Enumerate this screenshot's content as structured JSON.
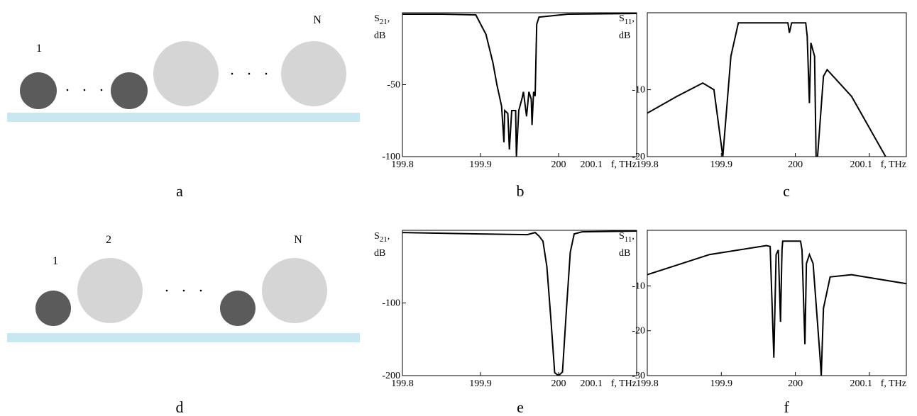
{
  "diagrams": [
    {
      "caption": "a",
      "labels": [
        "1",
        "N"
      ]
    },
    {
      "caption": "d",
      "labels": [
        "1",
        "2",
        "N"
      ]
    }
  ],
  "chart_data": [
    {
      "type": "line",
      "caption": "b",
      "y_label": {
        "symbol": "S",
        "subscript": "21",
        "suffix": ",",
        "unit": "dB"
      },
      "x_label": "f, THz",
      "xlim": [
        199.8,
        200.1
      ],
      "xticks": [
        199.8,
        199.9,
        200,
        200.1
      ],
      "ylim": [
        -100,
        0
      ],
      "yticks": [
        -50,
        -100
      ],
      "color": "#000000",
      "x": [
        199.8,
        199.85,
        199.894,
        199.907,
        199.916,
        199.921,
        199.927,
        199.93,
        199.931,
        199.935,
        199.937,
        199.94,
        199.945,
        199.946,
        199.949,
        199.953,
        199.955,
        199.959,
        199.962,
        199.965,
        199.966,
        199.968,
        199.97,
        199.972,
        199.975,
        200.012,
        200.1
      ],
      "values": [
        -1,
        -1,
        -1.5,
        -15,
        -35,
        -50,
        -65,
        -90,
        -68,
        -70,
        -95,
        -68,
        -68,
        -100,
        -68,
        -60,
        -55,
        -72,
        -55,
        -60,
        -78,
        -55,
        -58,
        -8,
        -3,
        -1,
        -0.5
      ]
    },
    {
      "type": "line",
      "caption": "c",
      "y_label": {
        "symbol": "S",
        "subscript": "11",
        "suffix": ",",
        "unit": "dB"
      },
      "x_label": "f, THz",
      "xlim": [
        199.8,
        200.15
      ],
      "xticks": [
        199.8,
        199.9,
        200,
        200.1
      ],
      "ylim": [
        -20,
        1.5
      ],
      "yticks": [
        -10,
        -20
      ],
      "color": "#000000",
      "x": [
        199.8,
        199.84,
        199.875,
        199.89,
        199.902,
        199.913,
        199.923,
        199.99,
        199.992,
        199.995,
        200.014,
        200.016,
        200.019,
        200.021,
        200.026,
        200.028,
        200.03,
        200.038,
        200.043,
        200.076,
        200.122
      ],
      "values": [
        -13.5,
        -11,
        -9,
        -10,
        -20,
        -5,
        0,
        0,
        -1.5,
        0,
        0,
        -2,
        -12,
        -3,
        -5,
        -20,
        -20,
        -8,
        -7,
        -11,
        -20
      ]
    },
    {
      "type": "line",
      "caption": "e",
      "y_label": {
        "symbol": "S",
        "subscript": "21",
        "suffix": ",",
        "unit": "dB"
      },
      "x_label": "f, THz",
      "xlim": [
        199.8,
        200.1
      ],
      "xticks": [
        199.8,
        199.9,
        200,
        200.1
      ],
      "ylim": [
        -200,
        0
      ],
      "yticks": [
        -100,
        -200
      ],
      "color": "#000000",
      "x": [
        199.8,
        199.9,
        199.96,
        199.97,
        199.975,
        199.98,
        199.985,
        199.99,
        199.995,
        200.0,
        200.005,
        200.01,
        200.015,
        200.02,
        200.03,
        200.1
      ],
      "values": [
        -3,
        -5,
        -6,
        -3,
        -8,
        -15,
        -50,
        -120,
        -196,
        -200,
        -195,
        -110,
        -30,
        -5,
        -2,
        -1
      ]
    },
    {
      "type": "line",
      "caption": "f",
      "y_label": {
        "symbol": "S",
        "subscript": "11",
        "suffix": ",",
        "unit": "dB"
      },
      "x_label": "f, THz",
      "xlim": [
        199.8,
        200.15
      ],
      "xticks": [
        199.8,
        199.9,
        200,
        200.1
      ],
      "ylim": [
        -30,
        2.4
      ],
      "yticks": [
        -10,
        -20,
        -30
      ],
      "color": "#000000",
      "x": [
        199.8,
        199.884,
        199.961,
        199.966,
        199.971,
        199.974,
        199.977,
        199.98,
        199.982,
        199.983,
        200.007,
        200.009,
        200.013,
        200.015,
        200.019,
        200.024,
        200.033,
        200.035,
        200.038,
        200.047,
        200.076,
        200.15
      ],
      "values": [
        -7.5,
        -3,
        -1,
        -1.2,
        -26,
        -3,
        -2,
        -18,
        -2,
        0,
        0,
        -2,
        -23,
        -5,
        -3,
        -5,
        -25,
        -30,
        -15,
        -8,
        -7.5,
        -9.5
      ]
    }
  ]
}
